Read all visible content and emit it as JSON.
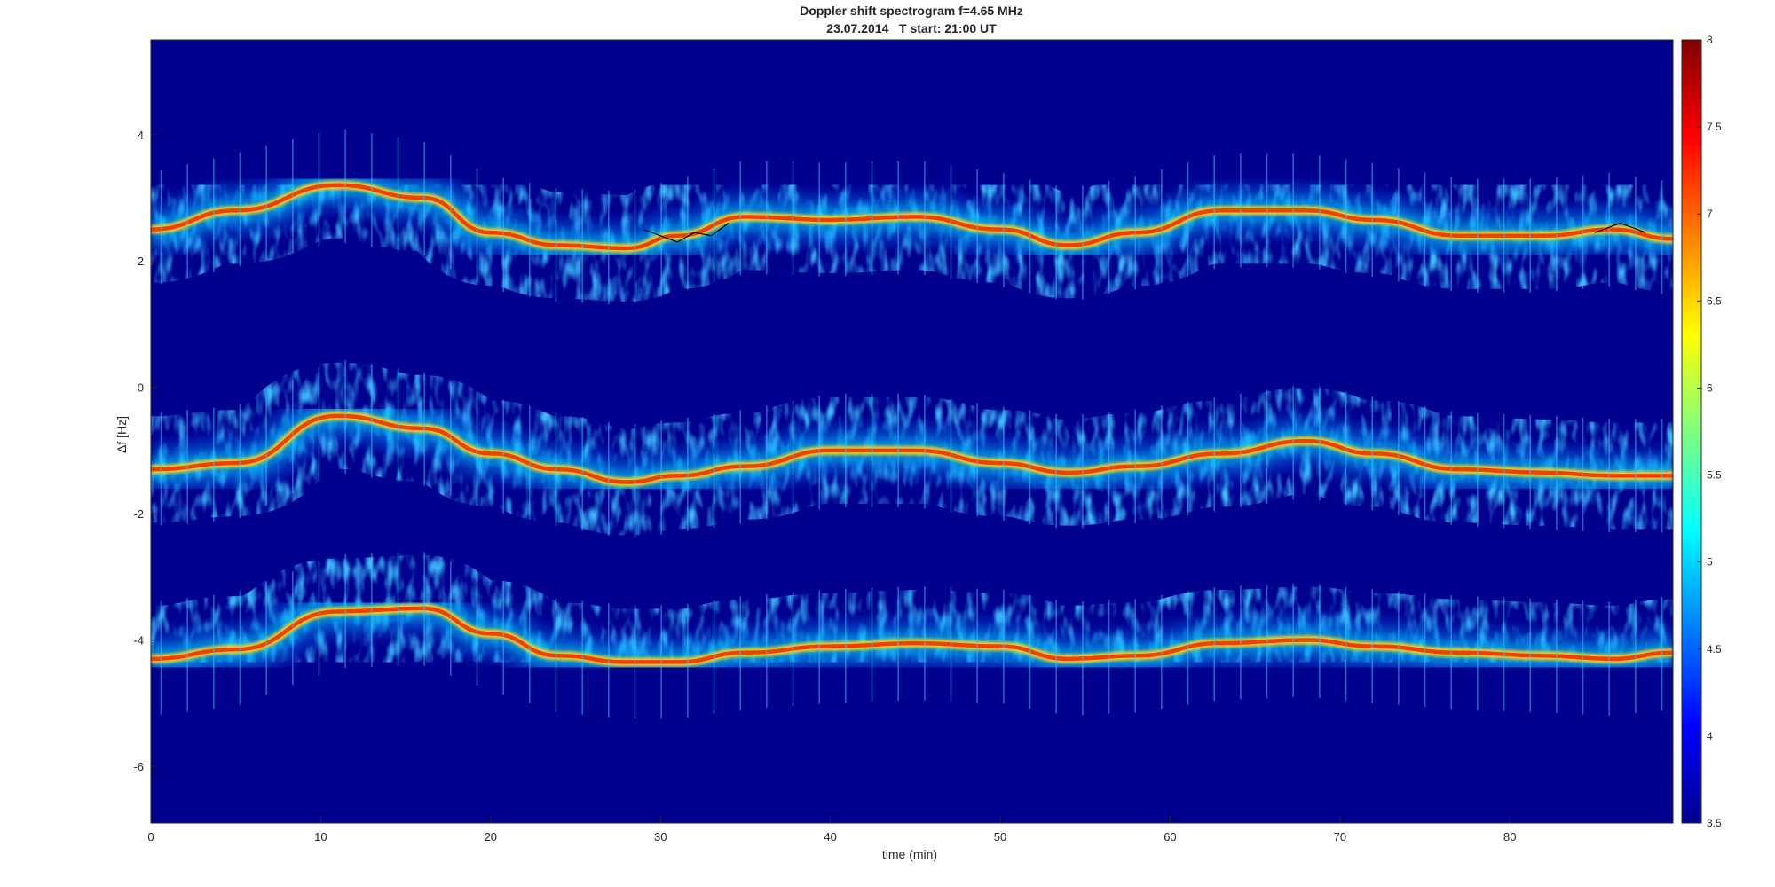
{
  "chart_data": {
    "type": "heatmap",
    "title": "Doppler shift spectrogram f=4.65 MHz",
    "subtitle": "23.07.2014   T start: 21:00 UT",
    "xlabel": "time (min)",
    "ylabel": "Δf [Hz]",
    "xlim": [
      0,
      89.6
    ],
    "ylim": [
      -6.9,
      5.5
    ],
    "xticks": [
      0,
      10,
      20,
      30,
      40,
      50,
      60,
      70,
      80
    ],
    "yticks": [
      -6,
      -4,
      -2,
      0,
      2,
      4
    ],
    "colorbar": {
      "colormap": "jet",
      "clim": [
        3.5,
        8
      ],
      "ticks": [
        3.5,
        4,
        4.5,
        5,
        5.5,
        6,
        6.5,
        7,
        7.5,
        8
      ]
    },
    "background_value": 3.5,
    "series": [
      {
        "x": [
          0,
          5,
          11,
          16,
          20,
          24,
          28,
          31,
          35,
          40,
          45,
          50,
          54,
          58,
          63,
          68,
          72,
          77,
          82,
          86,
          89.6
        ],
        "y": [
          2.5,
          2.8,
          3.2,
          3.0,
          2.45,
          2.25,
          2.2,
          2.4,
          2.7,
          2.65,
          2.7,
          2.5,
          2.25,
          2.45,
          2.8,
          2.8,
          2.65,
          2.4,
          2.4,
          2.5,
          2.35
        ]
      },
      {
        "x": [
          0,
          5,
          11,
          16,
          20,
          24,
          28,
          31,
          35,
          40,
          45,
          50,
          54,
          58,
          63,
          68,
          72,
          77,
          82,
          86,
          89.6
        ],
        "y": [
          -1.3,
          -1.2,
          -0.45,
          -0.65,
          -1.05,
          -1.3,
          -1.5,
          -1.4,
          -1.25,
          -1.0,
          -1.0,
          -1.2,
          -1.35,
          -1.25,
          -1.05,
          -0.85,
          -1.05,
          -1.3,
          -1.35,
          -1.4,
          -1.4
        ]
      },
      {
        "x": [
          0,
          5,
          11,
          16,
          20,
          24,
          28,
          31,
          35,
          40,
          45,
          50,
          54,
          58,
          63,
          68,
          72,
          77,
          82,
          86,
          89.6
        ],
        "y": [
          -4.3,
          -4.15,
          -3.55,
          -3.5,
          -3.9,
          -4.25,
          -4.35,
          -4.35,
          -4.2,
          -4.1,
          -4.05,
          -4.1,
          -4.3,
          -4.25,
          -4.05,
          -4.0,
          -4.1,
          -4.2,
          -4.25,
          -4.3,
          -4.2
        ]
      }
    ],
    "trace_line": {
      "x": [
        29,
        31,
        32,
        33,
        34
      ],
      "y": [
        2.5,
        2.3,
        2.45,
        2.4,
        2.6
      ]
    },
    "trace_line_2": {
      "x": [
        85,
        86.5,
        88
      ],
      "y": [
        2.45,
        2.6,
        2.45
      ]
    }
  }
}
